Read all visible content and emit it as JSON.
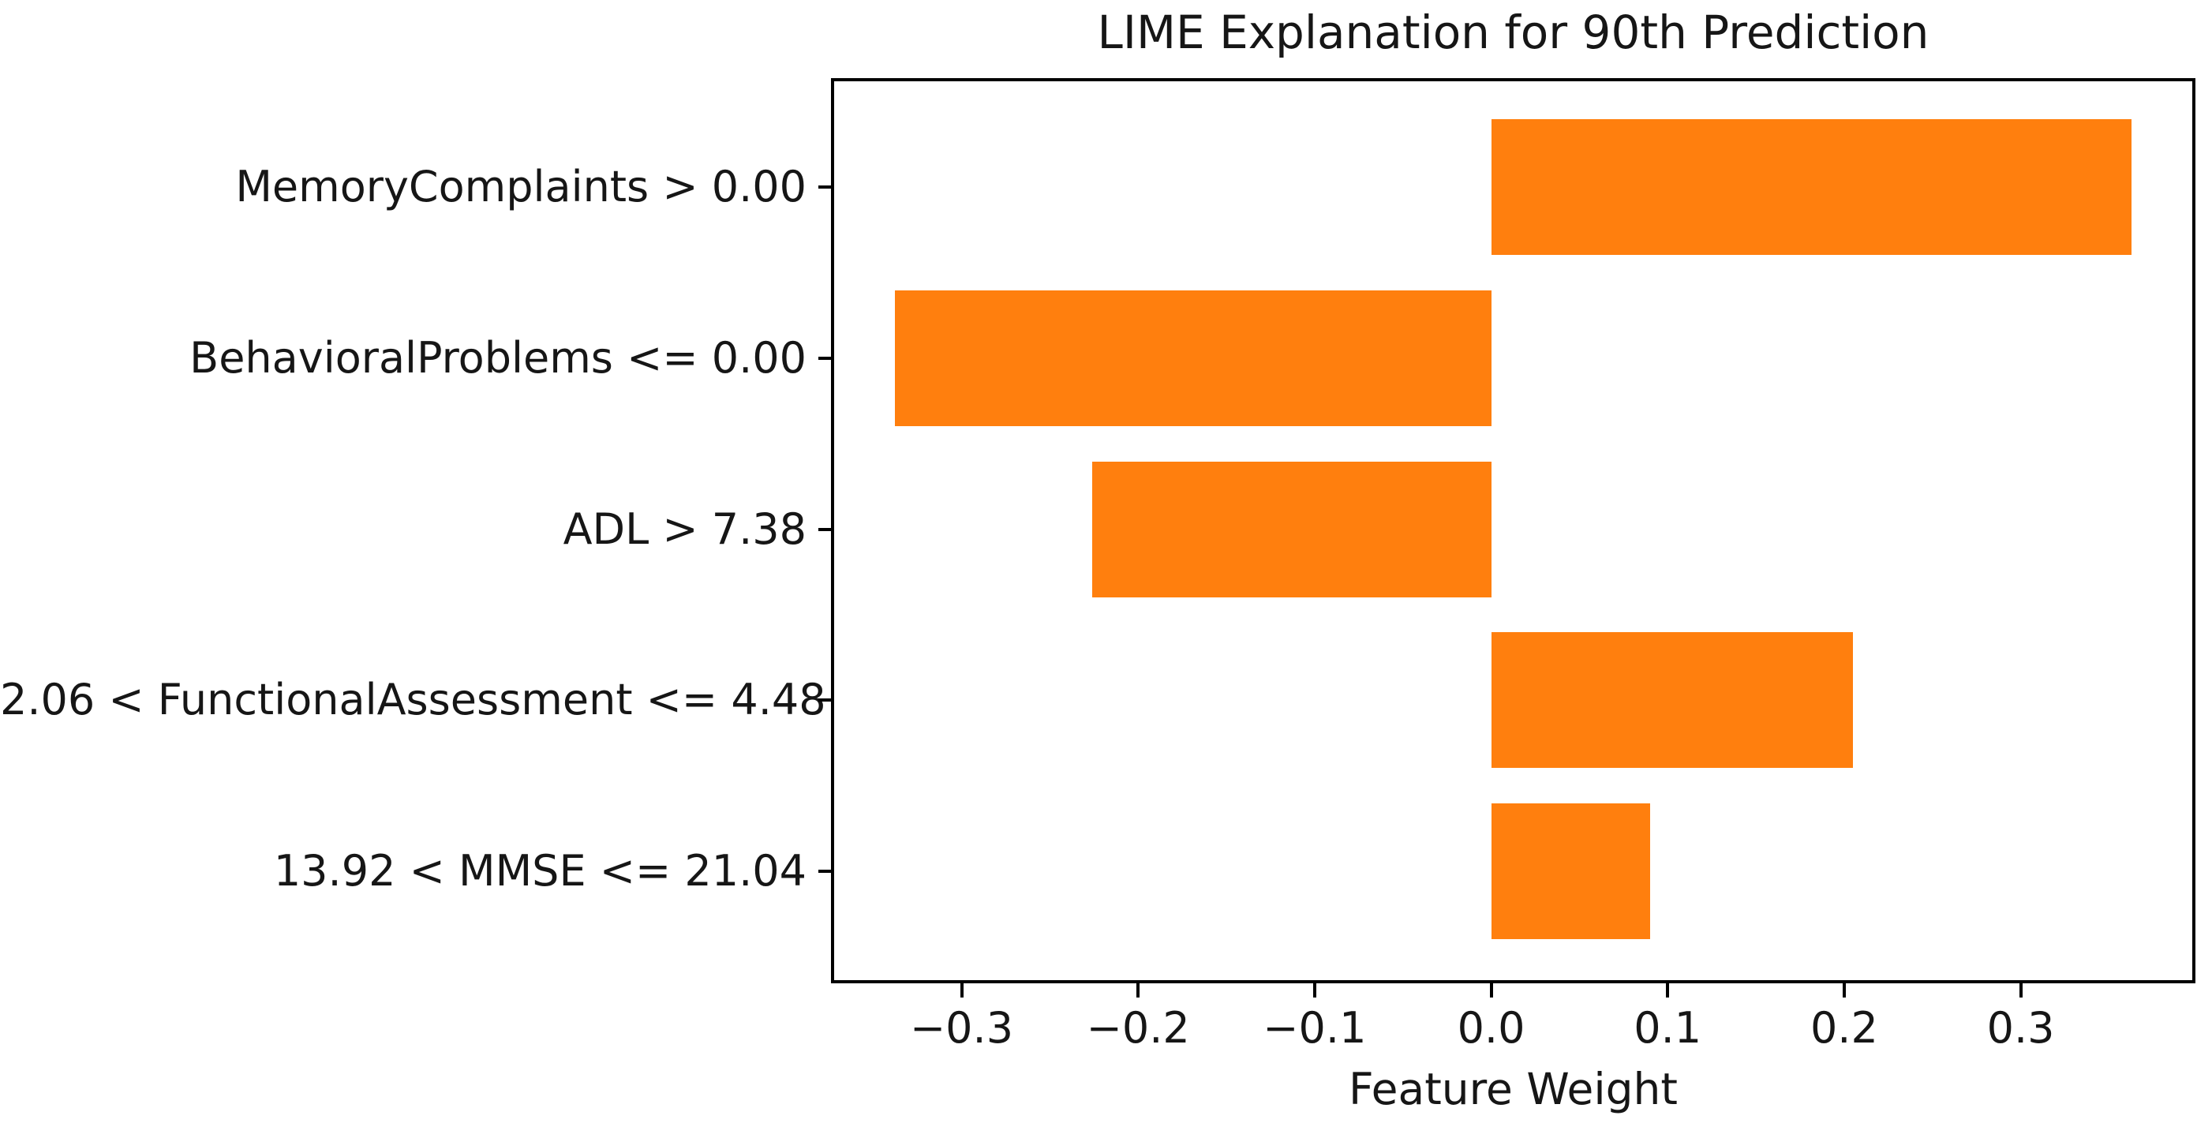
{
  "chart_data": {
    "type": "bar",
    "orientation": "horizontal",
    "title": "LIME Explanation for 90th Prediction",
    "xlabel": "Feature Weight",
    "ylabel": "",
    "categories": [
      "MemoryComplaints > 0.00",
      "BehavioralProblems <= 0.00",
      "ADL > 7.38",
      "2.06 < FunctionalAssessment <= 4.48",
      "13.92 < MMSE <= 21.04"
    ],
    "values": [
      0.363,
      -0.338,
      -0.226,
      0.205,
      0.09
    ],
    "bar_color": "#ff7f0e",
    "xlim": [
      -0.3731,
      0.3981
    ],
    "xticks": [
      -0.3,
      -0.2,
      -0.1,
      0.0,
      0.1,
      0.2,
      0.3
    ],
    "xtick_labels": [
      "−0.3",
      "−0.2",
      "−0.1",
      "0.0",
      "0.1",
      "0.2",
      "0.3"
    ],
    "grid": false,
    "legend": "none",
    "axis_color": "#000000",
    "background_color": "#ffffff"
  }
}
